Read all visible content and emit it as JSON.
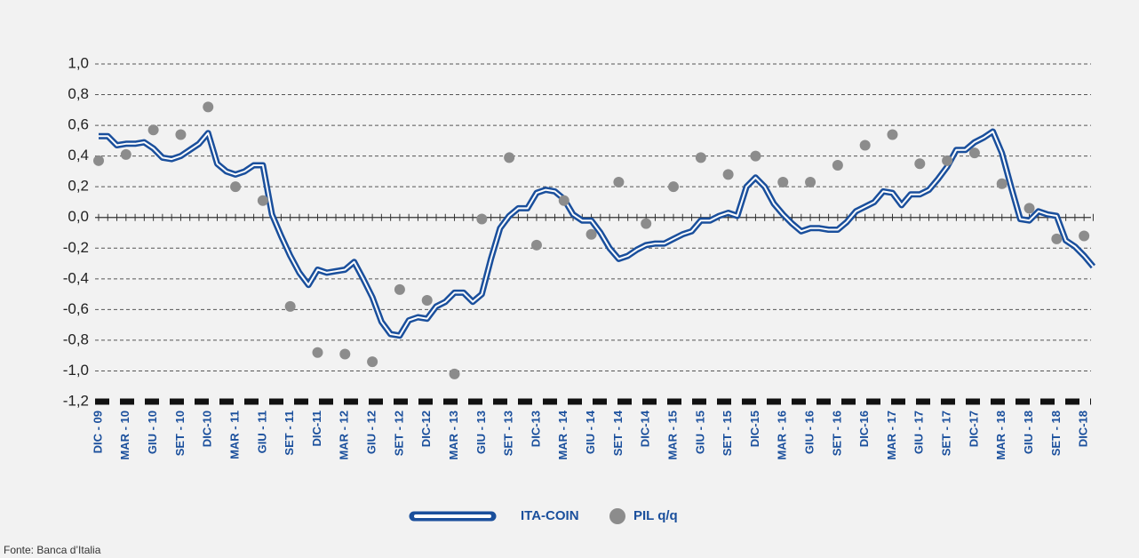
{
  "chart_data": {
    "type": "line",
    "categories": [
      "DIC - 09",
      null,
      null,
      "MAR - 10",
      null,
      null,
      "GIU - 10",
      null,
      null,
      "SET - 10",
      null,
      null,
      "DIC-10",
      null,
      null,
      "MAR - 11",
      null,
      null,
      "GIU - 11",
      null,
      null,
      "SET - 11",
      null,
      null,
      "DIC-11",
      null,
      null,
      "MAR - 12",
      null,
      null,
      "GIU - 12",
      null,
      null,
      "SET - 12",
      null,
      null,
      "DIC-12",
      null,
      null,
      "MAR - 13",
      null,
      null,
      "GIU - 13",
      null,
      null,
      "SET - 13",
      null,
      null,
      "DIC-13",
      null,
      null,
      "MAR - 14",
      null,
      null,
      "GIU - 14",
      null,
      null,
      "SET - 14",
      null,
      null,
      "DIC-14",
      null,
      null,
      "MAR - 15",
      null,
      null,
      "GIU - 15",
      null,
      null,
      "SET - 15",
      null,
      null,
      "DIC-15",
      null,
      null,
      "MAR - 16",
      null,
      null,
      "GIU - 16",
      null,
      null,
      "SET - 16",
      null,
      null,
      "DIC-16",
      null,
      null,
      "MAR - 17",
      null,
      null,
      "GIU - 17",
      null,
      null,
      "SET - 17",
      null,
      null,
      "DIC-17",
      null,
      null,
      "MAR - 18",
      null,
      null,
      "GIU - 18",
      null,
      null,
      "SET - 18",
      null,
      null,
      "DIC-18",
      null
    ],
    "series": [
      {
        "name": "ITA-COIN",
        "style": "line",
        "color": "#1a4f9c",
        "values": [
          0.53,
          0.53,
          0.47,
          0.48,
          0.48,
          0.49,
          0.45,
          0.39,
          0.38,
          0.4,
          0.44,
          0.48,
          0.55,
          0.35,
          0.3,
          0.28,
          0.3,
          0.34,
          0.34,
          0.02,
          -0.12,
          -0.25,
          -0.36,
          -0.44,
          -0.34,
          -0.36,
          -0.35,
          -0.34,
          -0.29,
          -0.4,
          -0.52,
          -0.68,
          -0.76,
          -0.77,
          -0.67,
          -0.65,
          -0.66,
          -0.58,
          -0.55,
          -0.49,
          -0.49,
          -0.55,
          -0.5,
          -0.27,
          -0.07,
          0.01,
          0.06,
          0.06,
          0.16,
          0.18,
          0.17,
          0.12,
          0.02,
          -0.02,
          -0.02,
          -0.1,
          -0.2,
          -0.27,
          -0.25,
          -0.21,
          -0.18,
          -0.17,
          -0.17,
          -0.14,
          -0.11,
          -0.09,
          -0.02,
          -0.02,
          0.01,
          0.03,
          0.01,
          0.2,
          0.26,
          0.2,
          0.09,
          0.02,
          -0.04,
          -0.09,
          -0.07,
          -0.07,
          -0.08,
          -0.08,
          -0.03,
          0.04,
          0.07,
          0.1,
          0.17,
          0.16,
          0.08,
          0.15,
          0.15,
          0.18,
          0.25,
          0.33,
          0.44,
          0.44,
          0.49,
          0.52,
          0.56,
          0.42,
          0.2,
          -0.01,
          -0.02,
          0.04,
          0.02,
          0.01,
          -0.15,
          -0.19,
          -0.25,
          -0.32
        ]
      },
      {
        "name": "PIL q/q",
        "style": "dots",
        "color": "#8c8c8c",
        "values": [
          0.37,
          null,
          null,
          0.41,
          null,
          null,
          0.57,
          null,
          null,
          0.54,
          null,
          null,
          0.72,
          null,
          null,
          0.2,
          null,
          null,
          0.11,
          null,
          null,
          -0.58,
          null,
          null,
          -0.88,
          null,
          null,
          -0.89,
          null,
          null,
          -0.94,
          null,
          null,
          -0.47,
          null,
          null,
          -0.54,
          null,
          null,
          -1.02,
          null,
          null,
          -0.01,
          null,
          null,
          0.39,
          null,
          null,
          -0.18,
          null,
          null,
          0.11,
          null,
          null,
          -0.11,
          null,
          null,
          0.23,
          null,
          null,
          -0.04,
          null,
          null,
          0.2,
          null,
          null,
          0.39,
          null,
          null,
          0.28,
          null,
          null,
          0.4,
          null,
          null,
          0.23,
          null,
          null,
          0.23,
          null,
          null,
          0.34,
          null,
          null,
          0.47,
          null,
          null,
          0.54,
          null,
          null,
          0.35,
          null,
          null,
          0.37,
          null,
          null,
          0.42,
          null,
          null,
          0.22,
          null,
          null,
          0.06,
          null,
          null,
          -0.14,
          null,
          null,
          -0.12,
          null
        ]
      }
    ],
    "ylim": [
      -1.2,
      1.0
    ],
    "yticks": [
      {
        "value": 1.0,
        "label": "1,0"
      },
      {
        "value": 0.8,
        "label": "0,8"
      },
      {
        "value": 0.6,
        "label": "0,6"
      },
      {
        "value": 0.4,
        "label": "0,4"
      },
      {
        "value": 0.2,
        "label": "0,2"
      },
      {
        "value": 0.0,
        "label": "0,0"
      },
      {
        "value": -0.2,
        "label": "-0,2"
      },
      {
        "value": -0.4,
        "label": "-0,4"
      },
      {
        "value": -0.6,
        "label": "-0,6"
      },
      {
        "value": -0.8,
        "label": "-0,8"
      },
      {
        "value": -1.0,
        "label": "-1,0"
      },
      {
        "value": -1.2,
        "label": "-1,2"
      }
    ],
    "grid": true,
    "legend": "bottom",
    "source": "Fonte: Banca d’Italia"
  }
}
